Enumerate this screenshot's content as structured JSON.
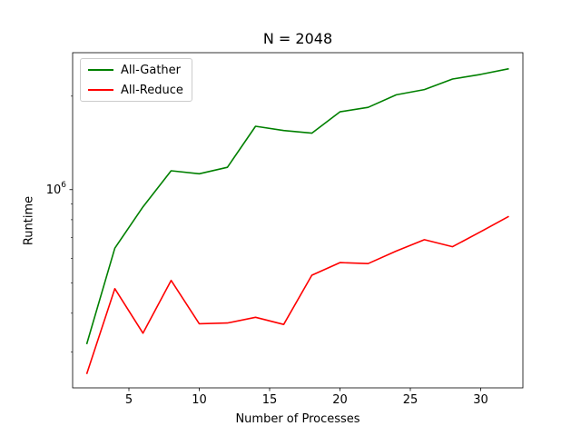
{
  "chart_data": {
    "type": "line",
    "title": "N = 2048",
    "xlabel": "Number of Processes",
    "ylabel": "Runtime",
    "x": [
      2,
      4,
      6,
      8,
      10,
      12,
      14,
      16,
      18,
      20,
      22,
      24,
      26,
      28,
      30,
      32
    ],
    "series": [
      {
        "name": "All-Gather",
        "color": "#008000",
        "values": [
          318000,
          648000,
          880000,
          1150000,
          1125000,
          1180000,
          1600000,
          1550000,
          1520000,
          1780000,
          1840000,
          2020000,
          2100000,
          2270000,
          2350000,
          2450000
        ]
      },
      {
        "name": "All-Reduce",
        "color": "#ff0000",
        "values": [
          255000,
          480000,
          345000,
          510000,
          370000,
          372000,
          388000,
          368000,
          530000,
          582000,
          578000,
          634000,
          690000,
          655000,
          732000,
          820000
        ]
      }
    ],
    "xlim": [
      1,
      33
    ],
    "ylim": [
      230000,
      2760000
    ],
    "yscale": "log",
    "xticks": [
      5,
      10,
      15,
      20,
      25,
      30
    ],
    "yticks": [
      {
        "value": 1000000,
        "base": "10",
        "exponent": "6"
      }
    ],
    "grid": false,
    "legend_position": "top-left"
  }
}
